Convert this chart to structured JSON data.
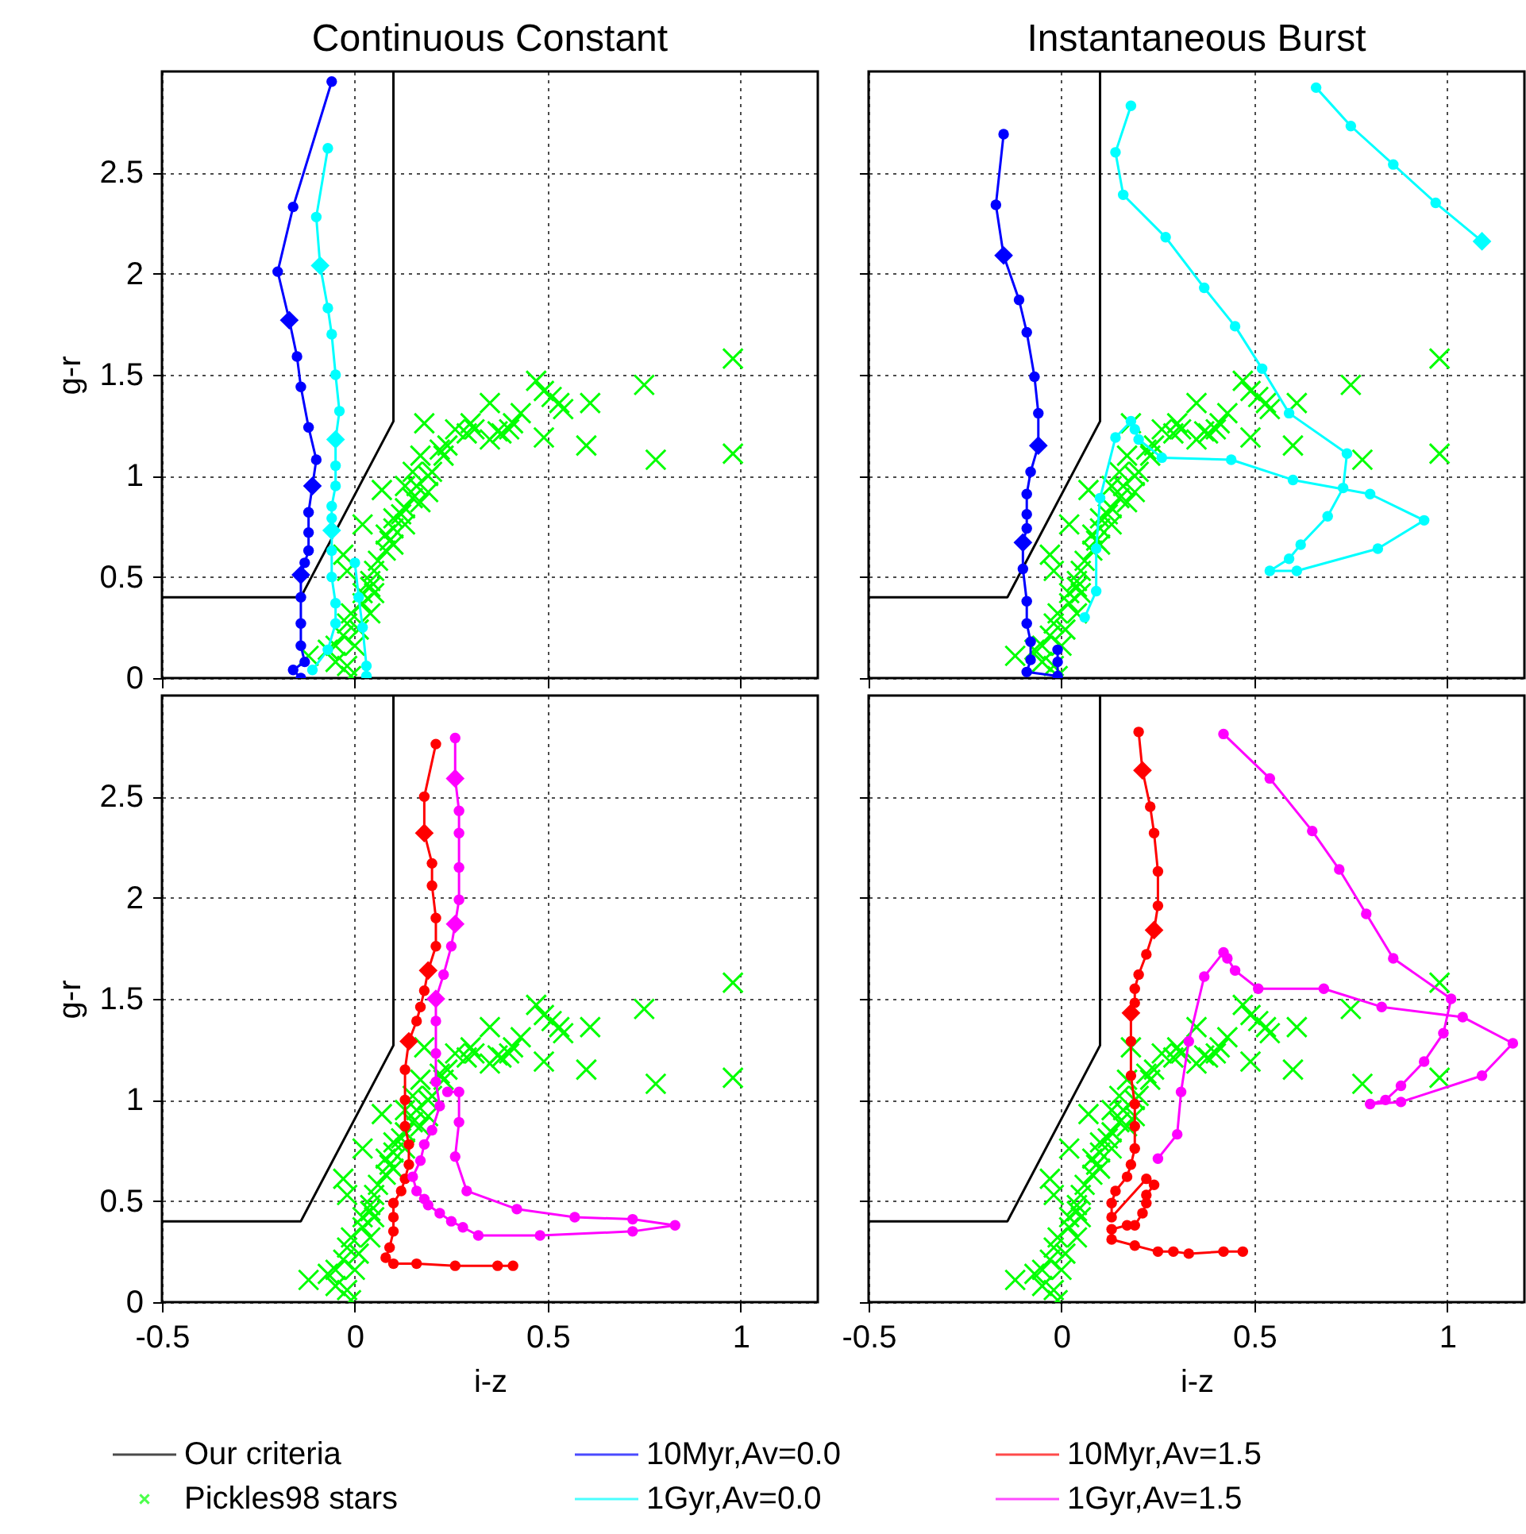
{
  "chart_data": [
    {
      "type": "line",
      "title": "Continuous Constant",
      "ylabel": "g-r",
      "xlim": [
        -0.5,
        1.2
      ],
      "ylim": [
        0,
        3
      ],
      "xticks": [
        -0.5,
        0,
        0.5,
        1
      ],
      "yticks": [
        0,
        0.5,
        1,
        1.5,
        2,
        2.5
      ],
      "grid": true,
      "legend": "bottom",
      "tick_labels": "y",
      "marker": "circle",
      "series": [
        {
          "name": "Our criteria",
          "type": "line",
          "marker": "none",
          "color": "#000000",
          "x": [
            -0.5,
            -0.14,
            0.1,
            0.1
          ],
          "values": [
            0.4,
            0.4,
            1.27,
            3.0
          ]
        },
        {
          "name": "Pickles98 stars",
          "type": "scatter",
          "marker": "cross",
          "color": "#00ff00",
          "x": [
            0.98,
            0.75,
            0.47,
            0.51,
            0.54,
            0.61,
            0.49,
            0.6,
            0.78,
            0.98,
            0.35,
            0.43,
            0.4,
            0.38,
            0.35,
            0.31,
            0.29,
            0.26,
            0.24,
            0.22,
            0.18,
            0.17,
            0.23,
            0.15,
            0.19,
            0.16,
            0.13,
            0.15,
            0.17,
            0.12,
            0.13,
            0.1,
            0.09,
            0.08,
            0.06,
            0.05,
            0.04,
            0.02,
            0.02,
            -0.01,
            -0.02,
            -0.03,
            -0.05,
            -0.05,
            -0.07,
            -0.02,
            -0.12,
            0.07,
            0.02,
            -0.03,
            -0.02,
            0.05,
            0.04,
            0.01,
            0.08,
            0.1,
            0.13,
            0.19,
            0.2,
            0.1,
            0.04,
            0.0,
            -0.01,
            0.3,
            0.37,
            0.41,
            0.53,
            0.49
          ],
          "values": [
            1.58,
            1.45,
            1.47,
            1.39,
            1.33,
            1.36,
            1.19,
            1.15,
            1.08,
            1.11,
            1.36,
            1.31,
            1.23,
            1.21,
            1.18,
            1.23,
            1.21,
            1.23,
            1.15,
            1.13,
            1.26,
            1.1,
            1.1,
            1.02,
            1.0,
            0.95,
            0.95,
            0.89,
            0.87,
            0.81,
            0.76,
            0.74,
            0.68,
            0.63,
            0.58,
            0.53,
            0.48,
            0.42,
            0.37,
            0.32,
            0.27,
            0.21,
            0.16,
            0.08,
            0.14,
            0.06,
            0.11,
            0.93,
            0.76,
            0.61,
            0.53,
            0.42,
            0.32,
            0.24,
            0.71,
            0.79,
            0.84,
            0.92,
            1.02,
            0.66,
            0.45,
            0.16,
            0.01,
            1.26,
            1.22,
            1.26,
            1.36,
            1.42
          ]
        },
        {
          "name": "10Myr,Av=0.0",
          "color": "#0000ff",
          "x": [
            -0.14,
            -0.16,
            -0.13,
            -0.14,
            -0.14,
            -0.14,
            -0.14,
            -0.13,
            -0.12,
            -0.12,
            -0.12,
            -0.11,
            -0.1,
            -0.12,
            -0.14,
            -0.15,
            -0.17,
            -0.2,
            -0.16,
            -0.06
          ],
          "values": [
            0,
            0.04,
            0.08,
            0.16,
            0.27,
            0.4,
            0.51,
            0.57,
            0.63,
            0.72,
            0.82,
            0.95,
            1.08,
            1.24,
            1.44,
            1.59,
            1.77,
            2.01,
            2.33,
            2.95
          ]
        },
        {
          "name": "1Gyr,Av=0.0",
          "color": "#00ffff",
          "x": [
            -0.07,
            -0.1,
            -0.09,
            -0.07,
            -0.06,
            -0.05,
            -0.04,
            -0.05,
            -0.05,
            -0.05,
            -0.06,
            -0.06,
            -0.06,
            -0.06,
            -0.06,
            -0.05,
            -0.05,
            -0.07,
            -0.11,
            null,
            0.0,
            0.01,
            0.02,
            0.03,
            0.03
          ],
          "values": [
            2.62,
            2.28,
            2.04,
            1.83,
            1.7,
            1.5,
            1.32,
            1.18,
            1.05,
            0.95,
            0.85,
            0.79,
            0.73,
            0.63,
            0.5,
            0.37,
            0.27,
            0.14,
            0.04,
            null,
            0.57,
            0.4,
            0.25,
            0.06,
            0.01
          ]
        },
        {
          "type": "scatter",
          "marker": "diamond",
          "color": "#0000ff",
          "x": [
            -0.14,
            -0.11,
            -0.17
          ],
          "values": [
            0.51,
            0.95,
            1.77
          ]
        },
        {
          "type": "scatter",
          "marker": "diamond",
          "color": "#00ffff",
          "x": [
            -0.09,
            -0.05,
            -0.06
          ],
          "values": [
            2.04,
            1.18,
            0.73
          ]
        }
      ]
    },
    {
      "type": "line",
      "title": "Instantaneous Burst",
      "xlim": [
        -0.5,
        1.2
      ],
      "ylim": [
        0,
        3
      ],
      "xticks": [
        -0.5,
        0,
        0.5,
        1
      ],
      "yticks": [
        0,
        0.5,
        1,
        1.5,
        2,
        2.5
      ],
      "grid": true,
      "tick_labels": false,
      "marker": "circle",
      "series": [
        {
          "type": "line",
          "marker": "none",
          "color": "#000000",
          "x": [
            -0.5,
            -0.14,
            0.1,
            0.1
          ],
          "values": [
            0.4,
            0.4,
            1.27,
            3.0
          ]
        },
        {
          "type": "scatter",
          "marker": "cross",
          "color": "#00ff00",
          "x": [
            0.98,
            0.75,
            0.47,
            0.51,
            0.54,
            0.61,
            0.49,
            0.6,
            0.78,
            0.98,
            0.35,
            0.43,
            0.4,
            0.38,
            0.35,
            0.31,
            0.29,
            0.26,
            0.24,
            0.22,
            0.18,
            0.17,
            0.23,
            0.15,
            0.19,
            0.16,
            0.13,
            0.15,
            0.17,
            0.12,
            0.13,
            0.1,
            0.09,
            0.08,
            0.06,
            0.05,
            0.04,
            0.02,
            0.02,
            -0.01,
            -0.02,
            -0.03,
            -0.05,
            -0.05,
            -0.07,
            -0.02,
            -0.12,
            0.07,
            0.02,
            -0.03,
            -0.02,
            0.05,
            0.04,
            0.01,
            0.08,
            0.1,
            0.13,
            0.19,
            0.2,
            0.1,
            0.04,
            0.0,
            -0.01,
            0.3,
            0.37,
            0.41,
            0.53,
            0.49
          ],
          "values": [
            1.58,
            1.45,
            1.47,
            1.39,
            1.33,
            1.36,
            1.19,
            1.15,
            1.08,
            1.11,
            1.36,
            1.31,
            1.23,
            1.21,
            1.18,
            1.23,
            1.21,
            1.23,
            1.15,
            1.13,
            1.26,
            1.1,
            1.1,
            1.02,
            1.0,
            0.95,
            0.95,
            0.89,
            0.87,
            0.81,
            0.76,
            0.74,
            0.68,
            0.63,
            0.58,
            0.53,
            0.48,
            0.42,
            0.37,
            0.32,
            0.27,
            0.21,
            0.16,
            0.08,
            0.14,
            0.06,
            0.11,
            0.93,
            0.76,
            0.61,
            0.53,
            0.42,
            0.32,
            0.24,
            0.71,
            0.79,
            0.84,
            0.92,
            1.02,
            0.66,
            0.45,
            0.16,
            0.01,
            1.26,
            1.22,
            1.26,
            1.36,
            1.42
          ]
        },
        {
          "color": "#0000ff",
          "x": [
            -0.01,
            -0.01,
            -0.01,
            -0.09,
            -0.08,
            -0.08,
            -0.09,
            -0.09,
            -0.1,
            -0.1,
            -0.09,
            -0.09,
            -0.09,
            -0.08,
            -0.06,
            -0.06,
            -0.07,
            -0.09,
            -0.11,
            -0.15,
            -0.17,
            -0.15
          ],
          "values": [
            0.14,
            0.08,
            0.01,
            0.03,
            0.09,
            0.18,
            0.27,
            0.38,
            0.54,
            0.67,
            0.74,
            0.81,
            0.91,
            1.02,
            1.15,
            1.31,
            1.49,
            1.71,
            1.87,
            2.09,
            2.34,
            2.69
          ]
        },
        {
          "color": "#00ffff",
          "x": [
            0.66,
            0.75,
            0.86,
            0.97,
            1.09,
            null,
            0.18,
            0.14,
            0.16,
            0.27,
            0.37,
            0.45,
            0.52,
            0.59,
            0.74,
            0.73,
            0.69,
            0.62,
            0.59,
            0.54,
            0.61,
            0.82,
            0.94,
            0.8,
            0.6,
            0.44,
            0.26,
            0.2,
            0.19,
            0.18,
            0.14,
            0.1,
            0.09,
            0.09,
            0.06
          ],
          "values": [
            2.92,
            2.73,
            2.54,
            2.35,
            2.16,
            null,
            2.83,
            2.6,
            2.39,
            2.18,
            1.93,
            1.74,
            1.53,
            1.31,
            1.11,
            0.94,
            0.8,
            0.66,
            0.59,
            0.53,
            0.53,
            0.64,
            0.78,
            0.91,
            0.98,
            1.08,
            1.09,
            1.18,
            1.23,
            1.27,
            1.19,
            0.89,
            0.64,
            0.43,
            0.3
          ]
        },
        {
          "type": "scatter",
          "marker": "diamond",
          "color": "#0000ff",
          "x": [
            -0.1,
            -0.06,
            -0.15
          ],
          "values": [
            0.67,
            1.15,
            2.09
          ]
        },
        {
          "type": "scatter",
          "marker": "diamond",
          "color": "#00ffff",
          "x": [
            1.09
          ],
          "values": [
            2.16
          ]
        }
      ]
    },
    {
      "type": "line",
      "xlabel": "i-z",
      "ylabel": "g-r",
      "xlim": [
        -0.5,
        1.2
      ],
      "ylim": [
        0,
        3
      ],
      "xticks": [
        -0.5,
        0,
        0.5,
        1
      ],
      "yticks": [
        0,
        0.5,
        1,
        1.5,
        2,
        2.5
      ],
      "grid": true,
      "legend": "bottom",
      "marker": "circle",
      "series": [
        {
          "type": "line",
          "marker": "none",
          "color": "#000000",
          "x": [
            -0.5,
            -0.14,
            0.1,
            0.1
          ],
          "values": [
            0.4,
            0.4,
            1.27,
            3.0
          ]
        },
        {
          "type": "scatter",
          "marker": "cross",
          "color": "#00ff00",
          "x": [
            0.98,
            0.75,
            0.47,
            0.51,
            0.54,
            0.61,
            0.49,
            0.6,
            0.78,
            0.98,
            0.35,
            0.43,
            0.4,
            0.38,
            0.35,
            0.31,
            0.29,
            0.26,
            0.24,
            0.22,
            0.18,
            0.17,
            0.23,
            0.15,
            0.19,
            0.16,
            0.13,
            0.15,
            0.17,
            0.12,
            0.13,
            0.1,
            0.09,
            0.08,
            0.06,
            0.05,
            0.04,
            0.02,
            0.02,
            -0.01,
            -0.02,
            -0.03,
            -0.05,
            -0.05,
            -0.07,
            -0.02,
            -0.12,
            0.07,
            0.02,
            -0.03,
            -0.02,
            0.05,
            0.04,
            0.01,
            0.08,
            0.1,
            0.13,
            0.19,
            0.2,
            0.1,
            0.04,
            0.0,
            -0.01,
            0.3,
            0.37,
            0.41,
            0.53,
            0.49
          ],
          "values": [
            1.58,
            1.45,
            1.47,
            1.39,
            1.33,
            1.36,
            1.19,
            1.15,
            1.08,
            1.11,
            1.36,
            1.31,
            1.23,
            1.21,
            1.18,
            1.23,
            1.21,
            1.23,
            1.15,
            1.13,
            1.26,
            1.1,
            1.1,
            1.02,
            1.0,
            0.95,
            0.95,
            0.89,
            0.87,
            0.81,
            0.76,
            0.74,
            0.68,
            0.63,
            0.58,
            0.53,
            0.48,
            0.42,
            0.37,
            0.32,
            0.27,
            0.21,
            0.16,
            0.08,
            0.14,
            0.06,
            0.11,
            0.93,
            0.76,
            0.61,
            0.53,
            0.42,
            0.32,
            0.24,
            0.71,
            0.79,
            0.84,
            0.92,
            1.02,
            0.66,
            0.45,
            0.16,
            0.01,
            1.26,
            1.22,
            1.26,
            1.36,
            1.42
          ]
        },
        {
          "name": "10Myr,Av=1.5",
          "color": "#ff0000",
          "x": [
            0.21,
            0.18,
            0.18,
            0.2,
            0.2,
            0.21,
            0.21,
            0.19,
            0.18,
            0.17,
            0.16,
            0.14,
            0.13,
            0.13,
            0.13,
            0.14,
            0.14,
            0.13,
            0.12,
            0.1,
            0.1,
            0.1,
            0.09,
            0.08,
            0.1,
            0.16,
            0.26,
            0.37,
            0.41
          ],
          "values": [
            2.76,
            2.5,
            2.32,
            2.17,
            2.06,
            1.9,
            1.76,
            1.64,
            1.54,
            1.46,
            1.39,
            1.29,
            1.15,
            1.0,
            0.87,
            0.78,
            0.68,
            0.61,
            0.55,
            0.49,
            0.42,
            0.35,
            0.27,
            0.22,
            0.19,
            0.19,
            0.18,
            0.18,
            0.18
          ]
        },
        {
          "name": "1Gyr,Av=1.5",
          "color": "#ff00ff",
          "x": [
            0.26,
            0.26,
            0.27,
            0.27,
            0.27,
            0.27,
            0.26,
            0.25,
            0.23,
            0.21,
            0.21,
            0.21,
            0.21,
            0.22,
            0.2,
            0.18,
            0.17,
            0.15,
            0.16,
            0.18,
            0.19,
            0.22,
            0.25,
            0.28,
            0.32,
            0.48,
            0.72,
            0.83,
            0.72,
            0.57,
            0.42,
            0.29,
            0.26,
            0.27,
            0.27,
            0.24
          ],
          "values": [
            2.79,
            2.59,
            2.43,
            2.32,
            2.15,
            1.99,
            1.87,
            1.76,
            1.62,
            1.5,
            1.39,
            1.23,
            1.09,
            0.97,
            0.85,
            0.78,
            0.7,
            0.62,
            0.55,
            0.51,
            0.48,
            0.44,
            0.4,
            0.37,
            0.33,
            0.33,
            0.35,
            0.38,
            0.41,
            0.42,
            0.46,
            0.55,
            0.72,
            0.89,
            1.04,
            1.04
          ]
        },
        {
          "type": "scatter",
          "marker": "diamond",
          "color": "#ff0000",
          "x": [
            0.18,
            0.19,
            0.14
          ],
          "values": [
            2.32,
            1.64,
            1.29
          ]
        },
        {
          "type": "scatter",
          "marker": "diamond",
          "color": "#ff00ff",
          "x": [
            0.26,
            0.26,
            0.21
          ],
          "values": [
            2.59,
            1.87,
            1.5
          ]
        }
      ]
    },
    {
      "type": "line",
      "xlabel": "i-z",
      "xlim": [
        -0.5,
        1.2
      ],
      "ylim": [
        0,
        3
      ],
      "xticks": [
        -0.5,
        0,
        0.5,
        1
      ],
      "yticks": [
        0,
        0.5,
        1,
        1.5,
        2,
        2.5
      ],
      "grid": true,
      "tick_labels": "x",
      "marker": "circle",
      "series": [
        {
          "type": "line",
          "marker": "none",
          "color": "#000000",
          "x": [
            -0.5,
            -0.14,
            0.1,
            0.1
          ],
          "values": [
            0.4,
            0.4,
            1.27,
            3.0
          ]
        },
        {
          "type": "scatter",
          "marker": "cross",
          "color": "#00ff00",
          "x": [
            0.98,
            0.75,
            0.47,
            0.51,
            0.54,
            0.61,
            0.49,
            0.6,
            0.78,
            0.98,
            0.35,
            0.43,
            0.4,
            0.38,
            0.35,
            0.31,
            0.29,
            0.26,
            0.24,
            0.22,
            0.18,
            0.17,
            0.23,
            0.15,
            0.19,
            0.16,
            0.13,
            0.15,
            0.17,
            0.12,
            0.13,
            0.1,
            0.09,
            0.08,
            0.06,
            0.05,
            0.04,
            0.02,
            0.02,
            -0.01,
            -0.02,
            -0.03,
            -0.05,
            -0.05,
            -0.07,
            -0.02,
            -0.12,
            0.07,
            0.02,
            -0.03,
            -0.02,
            0.05,
            0.04,
            0.01,
            0.08,
            0.1,
            0.13,
            0.19,
            0.2,
            0.1,
            0.04,
            0.0,
            -0.01,
            0.3,
            0.37,
            0.41,
            0.53,
            0.49
          ],
          "values": [
            1.58,
            1.45,
            1.47,
            1.39,
            1.33,
            1.36,
            1.19,
            1.15,
            1.08,
            1.11,
            1.36,
            1.31,
            1.23,
            1.21,
            1.18,
            1.23,
            1.21,
            1.23,
            1.15,
            1.13,
            1.26,
            1.1,
            1.1,
            1.02,
            1.0,
            0.95,
            0.95,
            0.89,
            0.87,
            0.81,
            0.76,
            0.74,
            0.68,
            0.63,
            0.58,
            0.53,
            0.48,
            0.42,
            0.37,
            0.32,
            0.27,
            0.21,
            0.16,
            0.08,
            0.14,
            0.06,
            0.11,
            0.93,
            0.76,
            0.61,
            0.53,
            0.42,
            0.32,
            0.24,
            0.71,
            0.79,
            0.84,
            0.92,
            1.02,
            0.66,
            0.45,
            0.16,
            0.01,
            1.26,
            1.22,
            1.26,
            1.36,
            1.42
          ]
        },
        {
          "color": "#ff0000",
          "x": [
            0.2,
            0.21,
            0.23,
            0.24,
            0.25,
            0.25,
            0.24,
            0.22,
            0.2,
            0.19,
            0.19,
            0.18,
            0.18,
            0.18,
            0.19,
            0.19,
            0.19,
            0.18,
            0.17,
            0.14,
            0.13,
            0.13,
            0.22,
            0.24,
            0.22,
            0.22,
            0.21,
            0.19,
            0.17,
            0.13,
            0.13,
            0.19,
            0.25,
            0.29,
            0.33,
            0.42,
            0.47
          ],
          "values": [
            2.82,
            2.63,
            2.45,
            2.32,
            2.13,
            1.96,
            1.84,
            1.72,
            1.62,
            1.55,
            1.48,
            1.43,
            1.29,
            1.12,
            0.98,
            0.87,
            0.76,
            0.68,
            0.62,
            0.55,
            0.49,
            0.42,
            0.61,
            0.58,
            0.53,
            0.49,
            0.44,
            0.38,
            0.38,
            0.36,
            0.31,
            0.28,
            0.25,
            0.25,
            0.24,
            0.25,
            0.25
          ]
        },
        {
          "color": "#ff00ff",
          "x": [
            0.25,
            0.3,
            0.31,
            0.33,
            0.37,
            0.42,
            0.43,
            0.45,
            0.51,
            0.68,
            0.83,
            1.04,
            1.17,
            1.09,
            0.88,
            0.8,
            0.84,
            0.88,
            0.94,
            0.99,
            1.01,
            0.86,
            0.79,
            0.72,
            0.65,
            0.54,
            0.42
          ],
          "values": [
            0.71,
            0.83,
            1.04,
            1.29,
            1.61,
            1.73,
            1.7,
            1.64,
            1.55,
            1.55,
            1.46,
            1.41,
            1.28,
            1.12,
            0.99,
            0.98,
            1.0,
            1.07,
            1.19,
            1.33,
            1.5,
            1.7,
            1.92,
            2.14,
            2.33,
            2.59,
            2.81
          ]
        },
        {
          "type": "scatter",
          "marker": "diamond",
          "color": "#ff0000",
          "x": [
            0.21,
            0.24,
            0.18
          ],
          "values": [
            2.63,
            1.84,
            1.43
          ]
        }
      ]
    }
  ]
}
